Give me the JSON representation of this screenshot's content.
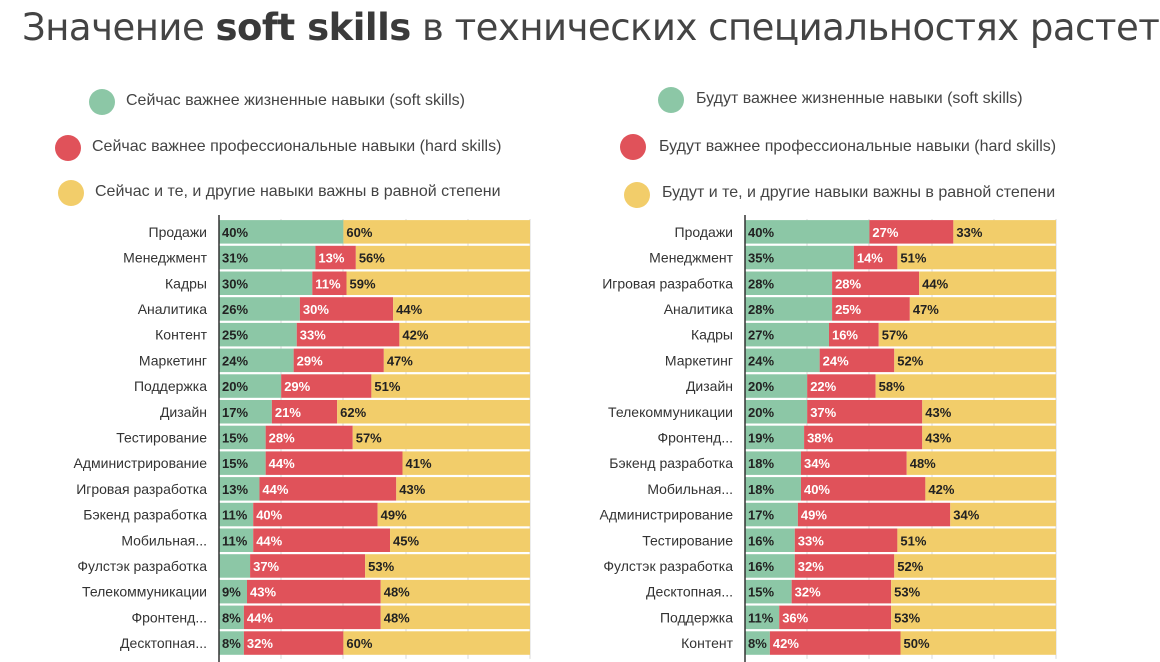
{
  "title": {
    "prefix": "Значение ",
    "bold": "soft skills",
    "suffix": " в технических специальностях растет"
  },
  "colors": {
    "soft": "#8cc7a6",
    "hard": "#e0525a",
    "both": "#f2cd6a"
  },
  "chart_data": [
    {
      "type": "bar",
      "stacked": true,
      "orientation": "horizontal",
      "legend": [
        "Сейчас важнее жизненные навыки (soft skills)",
        "Сейчас важнее профессиональные навыки (hard skills)",
        "Сейчас и те, и другие навыки важны в равной степени"
      ],
      "categories": [
        "Продажи",
        "Менеджмент",
        "Кадры",
        "Аналитика",
        "Контент",
        "Маркетинг",
        "Поддержка",
        "Дизайн",
        "Тестирование",
        "Администрирование",
        "Игровая разработка",
        "Бэкенд разработка",
        "Мобильная...",
        "Фулстэк разработка",
        "Телекоммуникации",
        "Фронтенд...",
        "Десктопная..."
      ],
      "series": [
        {
          "name": "Сейчас важнее жизненные навыки (soft skills)",
          "values": [
            40,
            31,
            30,
            26,
            25,
            24,
            20,
            17,
            15,
            15,
            13,
            11,
            11,
            10,
            9,
            8,
            8
          ]
        },
        {
          "name": "Сейчас важнее профессиональные навыки (hard skills)",
          "values": [
            0,
            13,
            11,
            30,
            33,
            29,
            29,
            21,
            28,
            44,
            44,
            40,
            44,
            37,
            43,
            44,
            32
          ]
        },
        {
          "name": "Сейчас и те, и другие навыки важны в равной степени",
          "values": [
            60,
            56,
            59,
            44,
            42,
            47,
            51,
            62,
            57,
            41,
            43,
            49,
            45,
            53,
            48,
            48,
            60
          ]
        }
      ],
      "labels": [
        [
          "40%",
          "",
          "60%"
        ],
        [
          "31%",
          "13%",
          "56%"
        ],
        [
          "30%",
          "11%",
          "59%"
        ],
        [
          "26%",
          "30%",
          "44%"
        ],
        [
          "25%",
          "33%",
          "42%"
        ],
        [
          "24%",
          "29%",
          "47%"
        ],
        [
          "20%",
          "29%",
          "51%"
        ],
        [
          "17%",
          "21%",
          "62%"
        ],
        [
          "15%",
          "28%",
          "57%"
        ],
        [
          "15%",
          "44%",
          "41%"
        ],
        [
          "13%",
          "44%",
          "43%"
        ],
        [
          "11%",
          "40%",
          "49%"
        ],
        [
          "11%",
          "44%",
          "45%"
        ],
        [
          "",
          "37%",
          "53%"
        ],
        [
          "9%",
          "43%",
          "48%"
        ],
        [
          "8%",
          "44%",
          "48%"
        ],
        [
          "8%",
          "32%",
          "60%"
        ]
      ],
      "xlim": [
        0,
        100
      ]
    },
    {
      "type": "bar",
      "stacked": true,
      "orientation": "horizontal",
      "legend": [
        "Будут важнее жизненные навыки (soft skills)",
        "Будут важнее профессиональные навыки (hard skills)",
        "Будут и те, и другие навыки важны в равной степени"
      ],
      "categories": [
        "Продажи",
        "Менеджмент",
        "Игровая разработка",
        "Аналитика",
        "Кадры",
        "Маркетинг",
        "Дизайн",
        "Телекоммуникации",
        "Фронтенд...",
        "Бэкенд разработка",
        "Мобильная...",
        "Администрирование",
        "Тестирование",
        "Фулстэк разработка",
        "Десктопная...",
        "Поддержка",
        "Контент"
      ],
      "series": [
        {
          "name": "Будут важнее жизненные навыки (soft skills)",
          "values": [
            40,
            35,
            28,
            28,
            27,
            24,
            20,
            20,
            19,
            18,
            18,
            17,
            16,
            16,
            15,
            11,
            8
          ]
        },
        {
          "name": "Будут важнее профессиональные навыки (hard skills)",
          "values": [
            27,
            14,
            28,
            25,
            16,
            24,
            22,
            37,
            38,
            34,
            40,
            49,
            33,
            32,
            32,
            36,
            42
          ]
        },
        {
          "name": "Будут и те, и другие навыки важны в равной степени",
          "values": [
            33,
            51,
            44,
            47,
            57,
            52,
            58,
            43,
            43,
            48,
            42,
            34,
            51,
            52,
            53,
            53,
            50
          ]
        }
      ],
      "labels": [
        [
          "40%",
          "27%",
          "33%"
        ],
        [
          "35%",
          "14%",
          "51%"
        ],
        [
          "28%",
          "28%",
          "44%"
        ],
        [
          "28%",
          "25%",
          "47%"
        ],
        [
          "27%",
          "16%",
          "57%"
        ],
        [
          "24%",
          "24%",
          "52%"
        ],
        [
          "20%",
          "22%",
          "58%"
        ],
        [
          "20%",
          "37%",
          "43%"
        ],
        [
          "19%",
          "38%",
          "43%"
        ],
        [
          "18%",
          "34%",
          "48%"
        ],
        [
          "18%",
          "40%",
          "42%"
        ],
        [
          "17%",
          "49%",
          "34%"
        ],
        [
          "16%",
          "33%",
          "51%"
        ],
        [
          "16%",
          "32%",
          "52%"
        ],
        [
          "15%",
          "32%",
          "53%"
        ],
        [
          "11%",
          "36%",
          "53%"
        ],
        [
          "8%",
          "42%",
          "50%"
        ]
      ],
      "xlim": [
        0,
        100
      ]
    }
  ]
}
